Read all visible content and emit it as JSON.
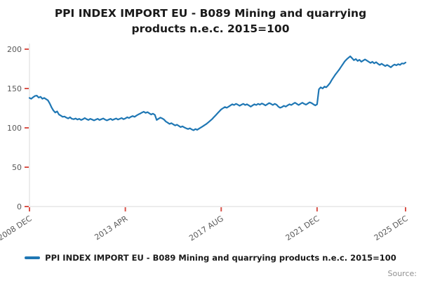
{
  "title": "PPI INDEX IMPORT EU - B089 Mining and quarrying products n.e.c. 2015=100",
  "legend": {
    "label": "PPI INDEX IMPORT EU - B089 Mining and quarrying products n.e.c. 2015=100"
  },
  "source": {
    "label": "Source:"
  },
  "colors": {
    "line": "#1f77b4",
    "tick": "#d9534a",
    "axis": "#d9d9d9",
    "axis_label": "#595959"
  },
  "chart_data": {
    "type": "line",
    "title": "PPI INDEX IMPORT EU - B089 Mining and quarrying products n.e.c. 2015=100",
    "xlabel": "",
    "ylabel": "",
    "frequency": "monthly",
    "x_start": "2008 DEC",
    "x_end": "2025 DEC",
    "ylim": [
      0,
      200
    ],
    "yticks": [
      0,
      50,
      100,
      150,
      200
    ],
    "xticks": [
      {
        "label": "2008 DEC",
        "month_index": 0
      },
      {
        "label": "2013 APR",
        "month_index": 52
      },
      {
        "label": "2017 AUG",
        "month_index": 104
      },
      {
        "label": "2021 DEC",
        "month_index": 156
      },
      {
        "label": "2025 DEC",
        "month_index": 204
      }
    ],
    "grid": false,
    "legend_position": "bottom",
    "series": [
      {
        "name": "PPI INDEX IMPORT EU - B089 Mining and quarrying products n.e.c. 2015=100",
        "values": [
          138,
          137,
          139,
          140.5,
          141,
          138.5,
          139.5,
          137,
          138,
          136.5,
          135,
          131,
          126,
          122,
          119.5,
          121,
          117,
          115.5,
          114,
          114.5,
          113,
          112,
          113.5,
          111.5,
          111,
          112,
          110.5,
          111.5,
          110,
          111,
          112.5,
          111,
          110,
          111.5,
          110.5,
          109.5,
          110.5,
          111.5,
          110,
          111,
          112,
          110.5,
          109.5,
          110.5,
          111.5,
          110,
          111,
          112,
          110.5,
          111.5,
          112.5,
          111,
          112,
          113.5,
          112.5,
          114,
          115,
          114,
          115.5,
          117,
          118,
          119.5,
          120.5,
          119,
          120,
          118.5,
          117,
          118,
          116.5,
          110,
          111.5,
          113,
          112,
          110.5,
          108,
          106.5,
          105,
          106,
          104.5,
          103,
          104,
          102.5,
          101,
          102,
          100.5,
          99.5,
          98.5,
          99.5,
          98,
          97,
          98.5,
          97.5,
          99,
          100.5,
          102,
          103.5,
          105,
          107,
          109,
          111,
          113.5,
          116,
          118.5,
          121,
          123.5,
          125,
          126.5,
          125.5,
          127,
          128.5,
          130,
          129,
          130.5,
          129.5,
          128,
          129.5,
          130.5,
          129,
          130,
          128.5,
          127,
          128.5,
          130,
          129,
          130.5,
          129.5,
          131,
          130,
          128.5,
          130,
          131.5,
          130.5,
          129,
          130.5,
          129.5,
          127,
          125.5,
          126.5,
          128,
          127,
          128.5,
          130,
          129,
          130.5,
          132,
          130.5,
          129,
          130.5,
          132,
          130.5,
          129.5,
          131,
          132.5,
          131.5,
          130,
          128.5,
          130,
          149,
          151.5,
          150,
          152.5,
          151.5,
          154,
          157,
          161,
          164.5,
          168,
          171,
          174,
          177.5,
          181,
          184.5,
          187,
          189,
          191,
          188.5,
          186,
          187.5,
          185,
          186.5,
          184,
          185.5,
          187,
          185.5,
          184,
          182.5,
          184,
          182,
          183.5,
          181.5,
          180,
          181.5,
          180,
          178.5,
          180,
          178.5,
          177,
          179,
          180.5,
          179.5,
          181,
          180,
          182,
          181.5,
          183
        ]
      }
    ]
  }
}
